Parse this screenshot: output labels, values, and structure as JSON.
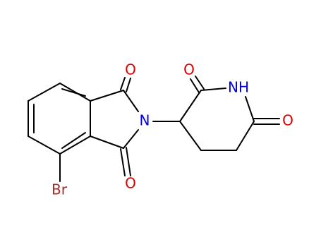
{
  "atoms": [
    {
      "label": "O"
    },
    {
      "label": "N"
    },
    {
      "label": "O"
    },
    {
      "label": "O"
    },
    {
      "label": "NH"
    },
    {
      "label": "O"
    },
    {
      "label": "Br"
    }
  ]
}
